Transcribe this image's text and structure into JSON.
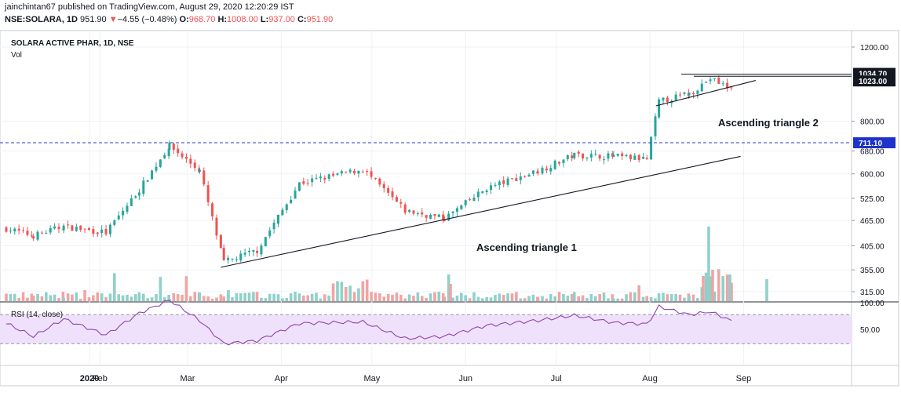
{
  "header": {
    "line1": "jainchintan67 published on TradingView.com, August 29, 2020 12:20:29 IST",
    "symbol": "NSE:SOLARA, 1D",
    "last": "951.90",
    "change_arrow": "▼",
    "change": "−4.55 (−0.48%)",
    "o_label": "O:",
    "o_value": "968.70",
    "h_label": "H:",
    "h_value": "1008.00",
    "l_label": "L:",
    "l_value": "937.00",
    "c_label": "C:",
    "c_value": "951.90"
  },
  "pane": {
    "legend_title": "SOLARA ACTIVE PHAR, 1D, NSE",
    "legend_vol": "Vol",
    "rsi_legend": "RSI (14, close)"
  },
  "colors": {
    "up": "#26a69a",
    "down": "#ef5350",
    "vol_up": "#8fd1ca",
    "vol_down": "#f0a5a3",
    "rsi_line": "#8e44ad",
    "rsi_band": "#efe1fb",
    "hline": "#2d3bd6",
    "grid": "#eef0f4"
  },
  "chart_data": [
    {
      "type": "candlestick",
      "title": "SOLARA ACTIVE PHAR, 1D, NSE",
      "y_axis_ticks": [
        "1200.00",
        "800.00",
        "680.00",
        "600.00",
        "525.00",
        "465.00",
        "405.00",
        "355.00",
        "315.00"
      ],
      "y_scale": "log",
      "x_axis_ticks": [
        "2020",
        "Feb",
        "Mar",
        "Apr",
        "May",
        "Jun",
        "Jul",
        "Aug",
        "Sep"
      ],
      "price_tags": [
        {
          "value": "1034.70",
          "style": "dark"
        },
        {
          "value": "1023.00",
          "style": "dark"
        },
        {
          "value": "711.10",
          "style": "blue"
        }
      ],
      "horizontal_lines": [
        {
          "value": 711.1,
          "style": "dashed",
          "color": "blue"
        },
        {
          "value": 1034.7,
          "style": "solid",
          "color": "black"
        },
        {
          "value": 1023.0,
          "style": "solid",
          "color": "black"
        }
      ],
      "annotations": [
        {
          "text": "Ascending triangle 1"
        },
        {
          "text": "Ascending triangle 2"
        }
      ],
      "trendlines": [
        {
          "name": "Ascending triangle 1 support",
          "start": [
            "2020-03-12",
            360
          ],
          "end": [
            "2020-08-31",
            660
          ]
        },
        {
          "name": "Ascending triangle 2 support",
          "start": [
            "2020-08-03",
            870
          ],
          "end": [
            "2020-09-05",
            1000
          ]
        }
      ],
      "key_points": [
        {
          "date": "2020-01-01",
          "close": 445
        },
        {
          "date": "2020-01-10",
          "close": 428
        },
        {
          "date": "2020-01-20",
          "close": 450
        },
        {
          "date": "2020-02-03",
          "close": 435
        },
        {
          "date": "2020-02-14",
          "close": 550
        },
        {
          "date": "2020-02-24",
          "close": 700
        },
        {
          "date": "2020-03-05",
          "close": 610
        },
        {
          "date": "2020-03-13",
          "close": 370
        },
        {
          "date": "2020-03-24",
          "close": 395
        },
        {
          "date": "2020-04-07",
          "close": 570
        },
        {
          "date": "2020-04-28",
          "close": 615
        },
        {
          "date": "2020-05-12",
          "close": 490
        },
        {
          "date": "2020-05-25",
          "close": 470
        },
        {
          "date": "2020-06-08",
          "close": 555
        },
        {
          "date": "2020-06-25",
          "close": 610
        },
        {
          "date": "2020-07-07",
          "close": 665
        },
        {
          "date": "2020-07-20",
          "close": 660
        },
        {
          "date": "2020-07-31",
          "close": 650
        },
        {
          "date": "2020-08-04",
          "close": 890
        },
        {
          "date": "2020-08-14",
          "close": 930
        },
        {
          "date": "2020-08-21",
          "close": 1010
        },
        {
          "date": "2020-08-28",
          "close": 952
        }
      ]
    },
    {
      "type": "line",
      "title": "RSI (14, close)",
      "y_axis_ticks": [
        "100.00",
        "50.00"
      ],
      "band": [
        30,
        70
      ],
      "x": [
        "2020-01-01",
        "2020-01-10",
        "2020-01-20",
        "2020-02-03",
        "2020-02-14",
        "2020-02-24",
        "2020-03-05",
        "2020-03-13",
        "2020-03-24",
        "2020-04-07",
        "2020-04-28",
        "2020-05-12",
        "2020-05-25",
        "2020-06-08",
        "2020-06-25",
        "2020-07-07",
        "2020-07-20",
        "2020-07-31",
        "2020-08-04",
        "2020-08-14",
        "2020-08-21",
        "2020-08-28"
      ],
      "values": [
        58,
        40,
        64,
        42,
        72,
        90,
        62,
        30,
        34,
        58,
        60,
        37,
        40,
        55,
        62,
        69,
        59,
        57,
        81,
        70,
        74,
        62
      ]
    }
  ]
}
